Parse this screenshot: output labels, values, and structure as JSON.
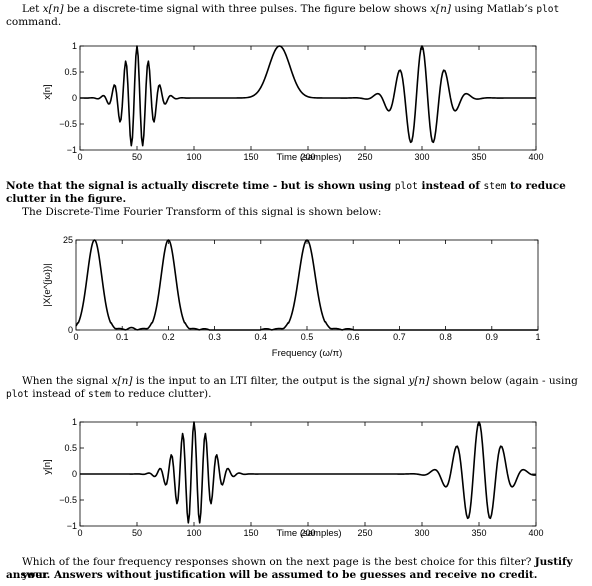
{
  "text": {
    "p1_a": "Let ",
    "p1_b": " be a discrete-time signal with three pulses. The figure below shows ",
    "p1_c": " using Matlab’s ",
    "p1_d": "plot",
    "p1_e": "command.",
    "xn": "x[n]",
    "yn": "y[n]",
    "note_a": "Note that the signal is actually discrete time - but is shown using ",
    "note_plot": "plot",
    "note_b": " instead of ",
    "note_stem": "stem",
    "note_c": " to reduce",
    "note_d": "clutter in the figure.",
    "dtft_line": "The Discrete-Time Fourier Transform of this signal is shown below:",
    "p3_a": "When the signal ",
    "p3_b": " is the input to an LTI filter, the output is the signal ",
    "p3_c": " shown below (again - using",
    "p3_plot": "plot",
    "p3_d": " instead of ",
    "p3_stem": "stem",
    "p3_e": " to reduce clutter).",
    "q_a": "Which of the four frequency responses shown on the next page is the best choice for this filter? ",
    "q_b": "Justify your",
    "q_c": "answer. Answers without justification will be assumed to be guesses and receive no credit."
  },
  "chart_data": [
    {
      "type": "line",
      "ylabel": "x[n]",
      "xlabel": "Time (samples)",
      "xlim": [
        0,
        400
      ],
      "ylim": [
        -1,
        1
      ],
      "xticks": [
        "0",
        "50",
        "100",
        "150",
        "200",
        "250",
        "300",
        "350",
        "400"
      ],
      "yticks": [
        "−1",
        "−0.5",
        "0",
        "0.5",
        "1"
      ],
      "series": [
        {
          "component": "gaussian-modulated cosine",
          "center": 50,
          "width": 17,
          "frequency": 0.2,
          "amplitude": 1
        },
        {
          "component": "gaussian pulse",
          "center": 175,
          "width": 13,
          "frequency": 0.0,
          "amplitude": 1
        },
        {
          "component": "gaussian-modulated cosine",
          "center": 300,
          "width": 25,
          "frequency": 0.1,
          "amplitude": 1
        }
      ]
    },
    {
      "type": "line",
      "ylabel": "|X(e^{jω})|",
      "xlabel": "Frequency (ω/π)",
      "xlim": [
        0,
        1
      ],
      "ylim": [
        0,
        25
      ],
      "xticks": [
        "0",
        "0.1",
        "0.2",
        "0.3",
        "0.4",
        "0.5",
        "0.6",
        "0.7",
        "0.8",
        "0.9",
        "1"
      ],
      "yticks": [
        "0",
        "25"
      ],
      "peaks": [
        {
          "frequency": 0.04,
          "magnitude": 25
        },
        {
          "frequency": 0.2,
          "magnitude": 25
        },
        {
          "frequency": 0.5,
          "magnitude": 25
        }
      ]
    },
    {
      "type": "line",
      "ylabel": "y[n]",
      "xlabel": "Time (samples)",
      "xlim": [
        0,
        400
      ],
      "ylim": [
        -1,
        1
      ],
      "xticks": [
        "0",
        "50",
        "100",
        "150",
        "200",
        "250",
        "300",
        "350",
        "400"
      ],
      "yticks": [
        "−1",
        "−0.5",
        "0",
        "0.5",
        "1"
      ],
      "series": [
        {
          "component": "gaussian-modulated cosine",
          "center": 100,
          "width": 20,
          "frequency": 0.2,
          "amplitude": 1
        },
        {
          "component": "gaussian-modulated cosine",
          "center": 350,
          "width": 25,
          "frequency": 0.1,
          "amplitude": 1
        }
      ]
    }
  ]
}
